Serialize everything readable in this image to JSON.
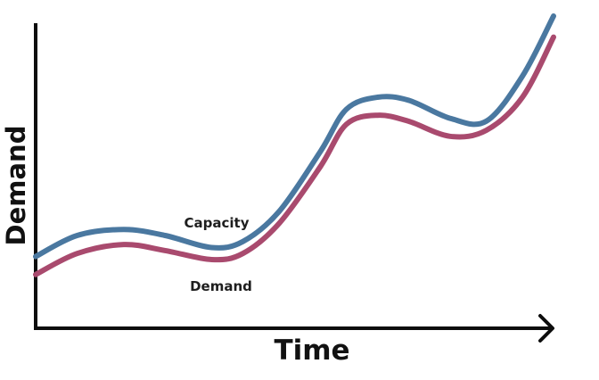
{
  "chart_data": {
    "type": "line",
    "xlabel": "Time",
    "ylabel": "Demand",
    "grid": false,
    "axis_ticks": false,
    "xlim": [
      0,
      100
    ],
    "ylim": [
      0,
      100
    ],
    "series": [
      {
        "name": "Capacity",
        "color": "#4a78a0",
        "points": [
          [
            0,
            20
          ],
          [
            8,
            27
          ],
          [
            17,
            29
          ],
          [
            25,
            27
          ],
          [
            34,
            23
          ],
          [
            40,
            25
          ],
          [
            47,
            35
          ],
          [
            55,
            55
          ],
          [
            60,
            69
          ],
          [
            66,
            73
          ],
          [
            72,
            72
          ],
          [
            80,
            66
          ],
          [
            87,
            65
          ],
          [
            94,
            80
          ],
          [
            100,
            100
          ]
        ]
      },
      {
        "name": "Demand",
        "color": "#a94a6e",
        "points": [
          [
            0,
            14
          ],
          [
            8,
            21
          ],
          [
            17,
            24
          ],
          [
            25,
            22
          ],
          [
            34,
            19
          ],
          [
            40,
            21
          ],
          [
            47,
            31
          ],
          [
            55,
            50
          ],
          [
            60,
            64
          ],
          [
            66,
            67
          ],
          [
            72,
            65
          ],
          [
            80,
            60
          ],
          [
            87,
            62
          ],
          [
            94,
            73
          ],
          [
            100,
            93
          ]
        ]
      }
    ],
    "annotations": [
      {
        "text": "Capacity",
        "series": "Capacity"
      },
      {
        "text": "Demand",
        "series": "Demand"
      }
    ]
  }
}
